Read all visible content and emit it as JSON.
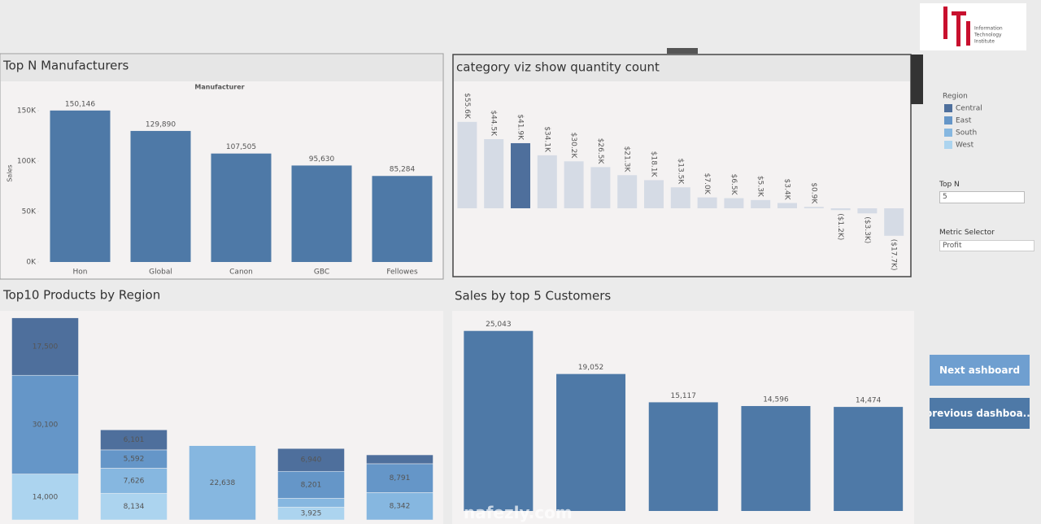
{
  "logo": {
    "lines": [
      "Information",
      "Technology",
      "Institute"
    ]
  },
  "chart_data": [
    {
      "type": "bar",
      "title": "Top N Manufacturers",
      "x_label": "Manufacturer",
      "y_label": "Sales",
      "categories": [
        "Hon",
        "Global",
        "Canon",
        "GBC",
        "Fellowes"
      ],
      "values": [
        150146,
        129890,
        107505,
        95630,
        85284
      ],
      "value_labels": [
        "150,146",
        "129,890",
        "107,505",
        "95,630",
        "85,284"
      ],
      "color": "#4e79a7",
      "ylim": [
        0,
        175000
      ],
      "yticks": [
        {
          "value": 0,
          "label": "0K"
        },
        {
          "value": 50000,
          "label": "50K"
        },
        {
          "value": 100000,
          "label": "100K"
        },
        {
          "value": 150000,
          "label": "150K"
        }
      ]
    },
    {
      "type": "bar",
      "title": "category viz show quantity count",
      "values": [
        55600,
        44500,
        41900,
        34100,
        30200,
        26500,
        21300,
        18100,
        13500,
        7000,
        6500,
        5300,
        3400,
        900,
        -1200,
        -3300,
        -17700
      ],
      "value_labels": [
        "$55.6K",
        "$44.5K",
        "$41.9K",
        "$34.1K",
        "$30.2K",
        "$26.5K",
        "$21.3K",
        "$18.1K",
        "$13.5K",
        "$7.0K",
        "$6.5K",
        "$5.3K",
        "$3.4K",
        "$0.9K",
        "($1.2K)",
        "($3.3K)",
        "($17.7K)"
      ],
      "color": "#d5dbe5",
      "highlight_index": 2,
      "highlight_color": "#4e6f9c",
      "value_label_rotation": 90,
      "ylim": [
        -44000,
        82000
      ]
    },
    {
      "type": "stacked_bar",
      "title": "Top10 Products by Region",
      "legend_title": "Region",
      "categories": [
        null,
        null,
        null,
        null,
        null
      ],
      "series": [
        {
          "name": "Central",
          "color": "#4e6f9c",
          "values": [
            17500,
            6101,
            null,
            6940,
            2700
          ],
          "value_labels": [
            "17,500",
            "6,101",
            null,
            "6,940",
            null
          ]
        },
        {
          "name": "East",
          "color": "#6596c8",
          "values": [
            30100,
            5592,
            null,
            8201,
            8791
          ],
          "value_labels": [
            "30,100",
            "5,592",
            null,
            "8,201",
            "8,791"
          ]
        },
        {
          "name": "South",
          "color": "#86b7e0",
          "values": [
            null,
            7626,
            22638,
            2700,
            8342
          ],
          "value_labels": [
            null,
            "7,626",
            "22,638",
            null,
            "8,342"
          ]
        },
        {
          "name": "West",
          "color": "#acd4ef",
          "values": [
            14000,
            8134,
            null,
            3925,
            null
          ],
          "value_labels": [
            "14,000",
            "8,134",
            null,
            "3,925",
            null
          ]
        }
      ],
      "ylim": [
        0,
        63000
      ]
    },
    {
      "type": "bar",
      "title": "Sales by top 5 Customers",
      "values": [
        25043,
        19052,
        15117,
        14596,
        14474
      ],
      "value_labels": [
        "25,043",
        "19,052",
        "15,117",
        "14,596",
        "14,474"
      ],
      "color": "#4e79a7",
      "ylim": [
        0,
        27500
      ]
    }
  ],
  "controls": {
    "top_n_label": "Top N",
    "top_n_value": 5,
    "metric_label": "Metric Selector",
    "metric_value": "Profit",
    "buttons": [
      "Next ashboard",
      "previous dashboa..."
    ]
  },
  "watermark": "nafezly.com"
}
